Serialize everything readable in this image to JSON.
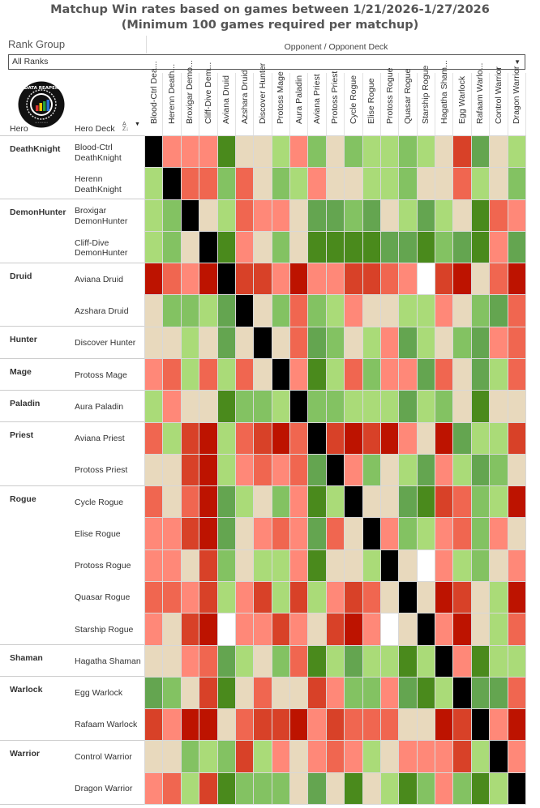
{
  "title_line1": "Matchup Win rates based on games between 1/21/2026-1/27/2026",
  "title_line2": "(Minimum 100 games required per matchup)",
  "filter": {
    "label": "Rank Group",
    "value": "All Ranks"
  },
  "opponent_header": "Opponent / Opponent Deck",
  "row_headers": {
    "hero": "Hero",
    "hero_deck": "Hero Deck"
  },
  "logo_text": "DATA REAPER REPORT",
  "chart_data": {
    "type": "heatmap",
    "title": "Matchup Win rates based on games between 1/21/2026-1/27/2026",
    "subtitle": "(Minimum 100 games required per matchup)",
    "xlabel": "Opponent / Opponent Deck",
    "color_scale": {
      "K": "#000000",
      "W": "#ffffff",
      "r3": "#bd1300",
      "r2": "#d84128",
      "r1": "#f06650",
      "r0": "#ff8878",
      "b": "#e8d9bd",
      "g0": "#aadb78",
      "g1": "#83c262",
      "g2": "#64a550",
      "g3": "#4a8a1c"
    },
    "columns": [
      "Blood-Ctrl Dea...",
      "Herenn Death...",
      "Broxigar Demo...",
      "Cliff-Dive Dem...",
      "Aviana Druid",
      "Azshara Druid",
      "Discover Hunter",
      "Protoss Mage",
      "Aura Paladin",
      "Aviana Priest",
      "Protoss Priest",
      "Cycle Rogue",
      "Elise Rogue",
      "Protoss Rogue",
      "Quasar Rogue",
      "Starship Rogue",
      "Hagatha Sham...",
      "Egg Warlock",
      "Rafaam Warlo...",
      "Control Warrior",
      "Dragon Warrior"
    ],
    "rows": [
      {
        "hero": "DeathKnight",
        "deck": "Blood-Ctrl DeathKnight",
        "cells": [
          "K",
          "r0",
          "r0",
          "r0",
          "g3",
          "b",
          "b",
          "g0",
          "r0",
          "g1",
          "b",
          "g1",
          "g0",
          "g0",
          "g1",
          "g0",
          "b",
          "r2",
          "g2",
          "b",
          "g0"
        ]
      },
      {
        "hero": "",
        "deck": "Herenn DeathKnight",
        "cells": [
          "g0",
          "K",
          "r1",
          "r1",
          "g1",
          "r1",
          "b",
          "g1",
          "g0",
          "r0",
          "b",
          "b",
          "g0",
          "g0",
          "g1",
          "b",
          "b",
          "r1",
          "g0",
          "b",
          "g1"
        ]
      },
      {
        "hero": "DemonHunter",
        "deck": "Broxigar DemonHunter",
        "cells": [
          "g0",
          "g1",
          "K",
          "b",
          "g0",
          "r1",
          "r0",
          "r0",
          "b",
          "g2",
          "g2",
          "g1",
          "g2",
          "b",
          "g0",
          "g2",
          "g0",
          "b",
          "g3",
          "r1",
          "r0"
        ]
      },
      {
        "hero": "",
        "deck": "Cliff-Dive DemonHunter",
        "cells": [
          "g0",
          "g1",
          "b",
          "K",
          "g3",
          "r0",
          "b",
          "g1",
          "b",
          "g3",
          "g3",
          "g3",
          "g3",
          "g2",
          "g2",
          "g3",
          "g1",
          "g2",
          "g3",
          "r0",
          "g2"
        ]
      },
      {
        "hero": "Druid",
        "deck": "Aviana Druid",
        "cells": [
          "r3",
          "r1",
          "r0",
          "r3",
          "K",
          "r2",
          "r2",
          "r0",
          "r3",
          "r0",
          "r0",
          "r2",
          "r2",
          "r1",
          "r0",
          "W",
          "r2",
          "r3",
          "b",
          "r1",
          "r3"
        ]
      },
      {
        "hero": "",
        "deck": "Azshara Druid",
        "cells": [
          "b",
          "g1",
          "g1",
          "g0",
          "g2",
          "K",
          "b",
          "g1",
          "r1",
          "g1",
          "g0",
          "r0",
          "b",
          "b",
          "g0",
          "g0",
          "r0",
          "b",
          "g1",
          "g2",
          "r1"
        ]
      },
      {
        "hero": "Hunter",
        "deck": "Discover Hunter",
        "cells": [
          "b",
          "b",
          "g0",
          "b",
          "g2",
          "b",
          "K",
          "b",
          "r1",
          "g2",
          "g1",
          "b",
          "g0",
          "r0",
          "g2",
          "g0",
          "b",
          "g1",
          "g2",
          "r0",
          "r1"
        ]
      },
      {
        "hero": "Mage",
        "deck": "Protoss Mage",
        "cells": [
          "r0",
          "r1",
          "g0",
          "r1",
          "g0",
          "r1",
          "b",
          "K",
          "r0",
          "g3",
          "g0",
          "r1",
          "g1",
          "r0",
          "r0",
          "g2",
          "r1",
          "b",
          "g2",
          "g0",
          "r1"
        ]
      },
      {
        "hero": "Paladin",
        "deck": "Aura Paladin",
        "cells": [
          "g0",
          "r0",
          "b",
          "b",
          "g3",
          "g1",
          "g1",
          "g0",
          "K",
          "g1",
          "g1",
          "g0",
          "g0",
          "g0",
          "g2",
          "g0",
          "g1",
          "b",
          "g3",
          "b",
          "b"
        ]
      },
      {
        "hero": "Priest",
        "deck": "Aviana Priest",
        "cells": [
          "r1",
          "g0",
          "r2",
          "r3",
          "g0",
          "r1",
          "r2",
          "r3",
          "r1",
          "K",
          "r2",
          "r3",
          "r2",
          "r3",
          "r0",
          "b",
          "r3",
          "g2",
          "g0",
          "g0",
          "r2"
        ]
      },
      {
        "hero": "",
        "deck": "Protoss Priest",
        "cells": [
          "b",
          "b",
          "r2",
          "r3",
          "g0",
          "r0",
          "r1",
          "r0",
          "r1",
          "g2",
          "K",
          "r0",
          "g1",
          "b",
          "g0",
          "g2",
          "r0",
          "g0",
          "g2",
          "g1",
          "b"
        ]
      },
      {
        "hero": "Rogue",
        "deck": "Cycle Rogue",
        "cells": [
          "r1",
          "b",
          "r1",
          "r3",
          "g2",
          "g0",
          "b",
          "g1",
          "r0",
          "g3",
          "g0",
          "K",
          "b",
          "b",
          "g2",
          "g3",
          "r2",
          "r1",
          "g1",
          "g0",
          "r3"
        ]
      },
      {
        "hero": "",
        "deck": "Elise Rogue",
        "cells": [
          "r0",
          "r0",
          "r2",
          "r3",
          "g2",
          "b",
          "r0",
          "r1",
          "r0",
          "g2",
          "r1",
          "b",
          "K",
          "r0",
          "g1",
          "g0",
          "r0",
          "r1",
          "g1",
          "r0",
          "b"
        ]
      },
      {
        "hero": "",
        "deck": "Protoss Rogue",
        "cells": [
          "r0",
          "r0",
          "b",
          "r2",
          "g1",
          "b",
          "g0",
          "g0",
          "r0",
          "g3",
          "b",
          "b",
          "g0",
          "K",
          "b",
          "W",
          "r0",
          "g0",
          "g1",
          "b",
          "r0"
        ]
      },
      {
        "hero": "",
        "deck": "Quasar Rogue",
        "cells": [
          "r1",
          "r1",
          "r0",
          "r2",
          "g0",
          "r0",
          "r2",
          "g0",
          "r2",
          "g0",
          "r0",
          "r2",
          "r1",
          "b",
          "K",
          "b",
          "r3",
          "r2",
          "b",
          "g0",
          "r3"
        ]
      },
      {
        "hero": "",
        "deck": "Starship Rogue",
        "cells": [
          "r0",
          "b",
          "r2",
          "r3",
          "W",
          "r0",
          "r0",
          "r2",
          "r0",
          "b",
          "r2",
          "r3",
          "r0",
          "W",
          "b",
          "K",
          "r0",
          "r3",
          "b",
          "g0",
          "r1"
        ]
      },
      {
        "hero": "Shaman",
        "deck": "Hagatha Shaman",
        "cells": [
          "b",
          "b",
          "r0",
          "r1",
          "g2",
          "g0",
          "b",
          "g1",
          "r1",
          "g3",
          "g0",
          "g2",
          "g0",
          "g0",
          "g3",
          "g0",
          "K",
          "r0",
          "g3",
          "g0",
          "g0"
        ]
      },
      {
        "hero": "Warlock",
        "deck": "Egg Warlock",
        "cells": [
          "g2",
          "g1",
          "b",
          "r2",
          "g3",
          "b",
          "r1",
          "b",
          "b",
          "r2",
          "r0",
          "g1",
          "g1",
          "r0",
          "g2",
          "g3",
          "g0",
          "K",
          "g2",
          "g2",
          "r1"
        ]
      },
      {
        "hero": "",
        "deck": "Rafaam Warlock",
        "cells": [
          "r2",
          "r0",
          "r3",
          "r3",
          "b",
          "r1",
          "r2",
          "r2",
          "r3",
          "r0",
          "r2",
          "r1",
          "r1",
          "r1",
          "b",
          "b",
          "r3",
          "r2",
          "K",
          "r0",
          "r3"
        ]
      },
      {
        "hero": "Warrior",
        "deck": "Control Warrior",
        "cells": [
          "b",
          "b",
          "g1",
          "g0",
          "g1",
          "r2",
          "g0",
          "r0",
          "b",
          "r0",
          "r1",
          "r0",
          "g0",
          "b",
          "r0",
          "r0",
          "r0",
          "r2",
          "g0",
          "K",
          "r0"
        ]
      },
      {
        "hero": "",
        "deck": "Dragon Warrior",
        "cells": [
          "r0",
          "r1",
          "g0",
          "r2",
          "g3",
          "g1",
          "g1",
          "g1",
          "b",
          "g2",
          "b",
          "g3",
          "b",
          "g0",
          "g3",
          "g1",
          "r0",
          "g1",
          "g3",
          "g0",
          "K"
        ]
      }
    ]
  }
}
